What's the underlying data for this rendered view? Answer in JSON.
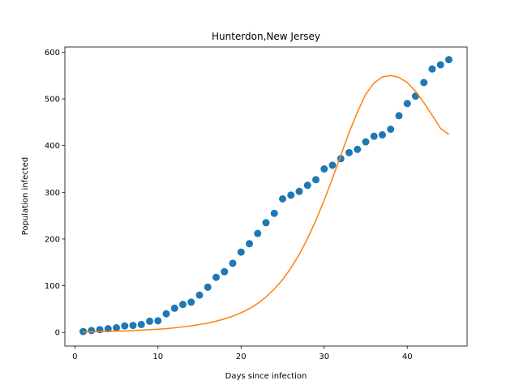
{
  "chart_data": {
    "type": "scatter",
    "title": "Hunterdon,New Jersey",
    "xlabel": "Days since infection",
    "ylabel": "Population infected",
    "xlim": [
      -1.2,
      47.2
    ],
    "ylim": [
      -29.1,
      611.1
    ],
    "xticks": [
      0,
      10,
      20,
      30,
      40
    ],
    "yticks": [
      0,
      100,
      200,
      300,
      400,
      500,
      600
    ],
    "grid": false,
    "series": [
      {
        "kind": "points",
        "color": "#1f77b4",
        "x": [
          1,
          2,
          3,
          4,
          5,
          6,
          7,
          8,
          9,
          10,
          11,
          12,
          13,
          14,
          15,
          16,
          17,
          18,
          19,
          20,
          21,
          22,
          23,
          24,
          25,
          26,
          27,
          28,
          29,
          30,
          31,
          32,
          33,
          34,
          35,
          36,
          37,
          38,
          39,
          40,
          41,
          42,
          43,
          44,
          45
        ],
        "y": [
          2,
          4,
          6,
          8,
          10,
          14,
          15,
          17,
          24,
          25,
          40,
          52,
          60,
          65,
          80,
          97,
          118,
          130,
          148,
          172,
          190,
          212,
          235,
          255,
          286,
          294,
          302,
          315,
          327,
          350,
          358,
          372,
          385,
          392,
          408,
          420,
          423,
          435,
          464,
          490,
          506,
          535,
          564,
          573,
          584
        ]
      },
      {
        "kind": "line",
        "color": "#ff7f0e",
        "x": [
          1,
          2,
          3,
          4,
          5,
          6,
          7,
          8,
          9,
          10,
          11,
          12,
          13,
          14,
          15,
          16,
          17,
          18,
          19,
          20,
          21,
          22,
          23,
          24,
          25,
          26,
          27,
          28,
          29,
          30,
          31,
          32,
          33,
          34,
          35,
          36,
          37,
          38,
          39,
          40,
          41,
          42,
          43,
          44,
          45
        ],
        "y": [
          1,
          1,
          2,
          2,
          3,
          3,
          4,
          5,
          6,
          7,
          8,
          10,
          12,
          14,
          17,
          20,
          24,
          29,
          35,
          42,
          51,
          62,
          76,
          93,
          113,
          138,
          167,
          201,
          240,
          283,
          330,
          379,
          428,
          472,
          510,
          534,
          547,
          550,
          546,
          535,
          516,
          492,
          465,
          437,
          424
        ]
      }
    ]
  }
}
